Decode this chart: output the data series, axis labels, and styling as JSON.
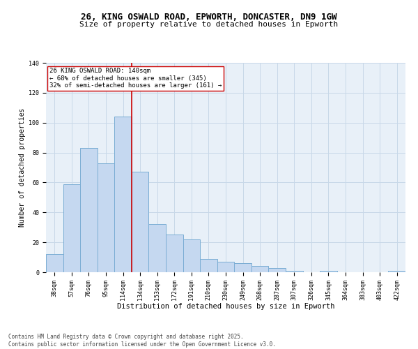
{
  "title1": "26, KING OSWALD ROAD, EPWORTH, DONCASTER, DN9 1GW",
  "title2": "Size of property relative to detached houses in Epworth",
  "xlabel": "Distribution of detached houses by size in Epworth",
  "ylabel": "Number of detached properties",
  "categories": [
    "38sqm",
    "57sqm",
    "76sqm",
    "95sqm",
    "114sqm",
    "134sqm",
    "153sqm",
    "172sqm",
    "191sqm",
    "210sqm",
    "230sqm",
    "249sqm",
    "268sqm",
    "287sqm",
    "307sqm",
    "326sqm",
    "345sqm",
    "364sqm",
    "383sqm",
    "403sqm",
    "422sqm"
  ],
  "values": [
    12,
    59,
    83,
    73,
    104,
    67,
    32,
    25,
    22,
    9,
    7,
    6,
    4,
    3,
    1,
    0,
    1,
    0,
    0,
    0,
    1
  ],
  "bar_color": "#c5d8f0",
  "bar_edge_color": "#7aadd4",
  "vline_color": "#cc0000",
  "vline_x_index": 5,
  "annotation_text": "26 KING OSWALD ROAD: 140sqm\n← 68% of detached houses are smaller (345)\n32% of semi-detached houses are larger (161) →",
  "annotation_box_color": "#ffffff",
  "annotation_box_edge": "#cc0000",
  "ylim": [
    0,
    140
  ],
  "yticks": [
    0,
    20,
    40,
    60,
    80,
    100,
    120,
    140
  ],
  "grid_color": "#c8d8e8",
  "bg_color": "#e8f0f8",
  "footer1": "Contains HM Land Registry data © Crown copyright and database right 2025.",
  "footer2": "Contains public sector information licensed under the Open Government Licence v3.0.",
  "title1_fontsize": 9,
  "title2_fontsize": 8,
  "xlabel_fontsize": 7.5,
  "ylabel_fontsize": 7,
  "tick_fontsize": 6,
  "annotation_fontsize": 6.5,
  "footer_fontsize": 5.5
}
